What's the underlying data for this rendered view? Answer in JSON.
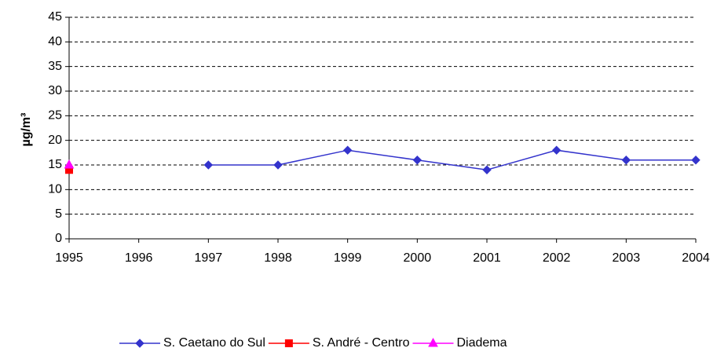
{
  "chart_data": {
    "type": "line",
    "y_label": "µg/m³",
    "categories": [
      "1995",
      "1996",
      "1997",
      "1998",
      "1999",
      "2000",
      "2001",
      "2002",
      "2003",
      "2004"
    ],
    "series": [
      {
        "name": "S. Caetano do Sul",
        "color": "#3333cc",
        "marker": "diamond",
        "values": [
          null,
          null,
          15,
          15,
          18,
          16,
          14,
          18,
          16,
          16
        ]
      },
      {
        "name": "S. André - Centro",
        "color": "#ff0000",
        "marker": "square",
        "values": [
          14,
          null,
          null,
          null,
          null,
          null,
          null,
          null,
          null,
          null
        ]
      },
      {
        "name": "Diadema",
        "color": "#ff00ff",
        "marker": "triangle",
        "values": [
          15,
          null,
          null,
          null,
          null,
          null,
          null,
          null,
          null,
          null
        ]
      }
    ],
    "ylim": [
      0,
      45
    ],
    "yticks": [
      0,
      5,
      10,
      15,
      20,
      25,
      30,
      35,
      40,
      45
    ],
    "grid": true,
    "legend": "bottom"
  }
}
